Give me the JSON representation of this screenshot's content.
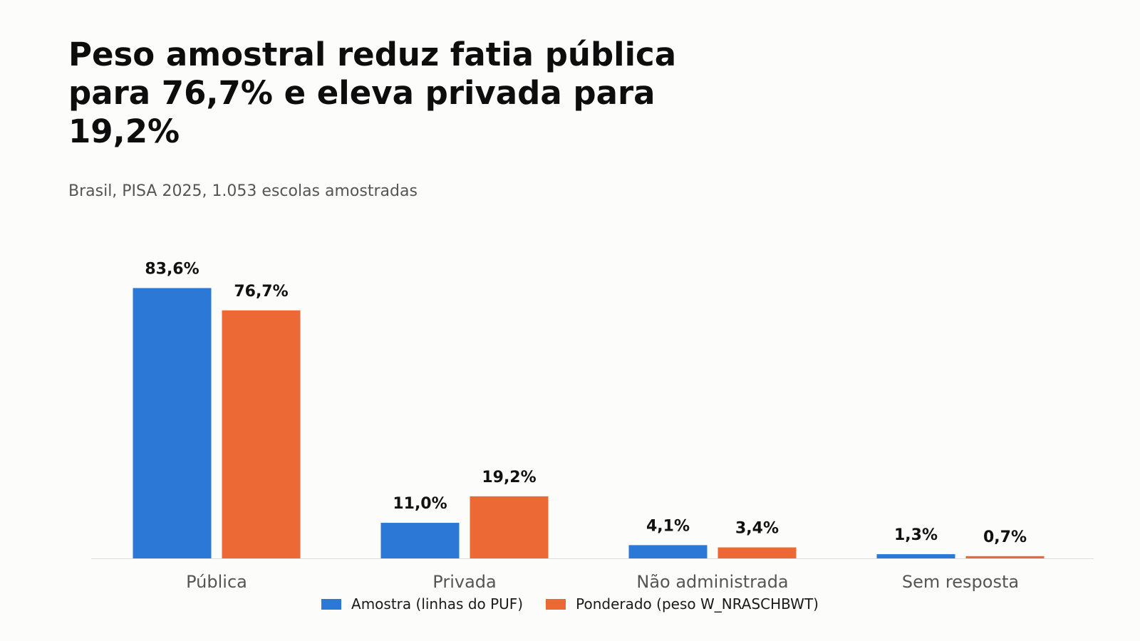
{
  "chart_data": {
    "type": "bar",
    "title": "Peso amostral reduz fatia pública para 76,7% e eleva privada para 19,2%",
    "subtitle": "Brasil, PISA 2025, 1.053 escolas amostradas",
    "categories": [
      "Pública",
      "Privada",
      "Não administrada",
      "Sem resposta"
    ],
    "series": [
      {
        "name": "Amostra (linhas do PUF)",
        "color": "#2b78d6",
        "values": [
          83.6,
          11.0,
          4.1,
          1.3
        ],
        "labels": [
          "83,6%",
          "11,0%",
          "4,1%",
          "1,3%"
        ]
      },
      {
        "name": "Ponderado (peso W_NRASCHBWT)",
        "color": "#ec6936",
        "values": [
          76.7,
          19.2,
          3.4,
          0.7
        ],
        "labels": [
          "76,7%",
          "19,2%",
          "3,4%",
          "0,7%"
        ]
      }
    ],
    "ylim": [
      0,
      100
    ],
    "grid": false,
    "legend_position": "bottom-center"
  }
}
